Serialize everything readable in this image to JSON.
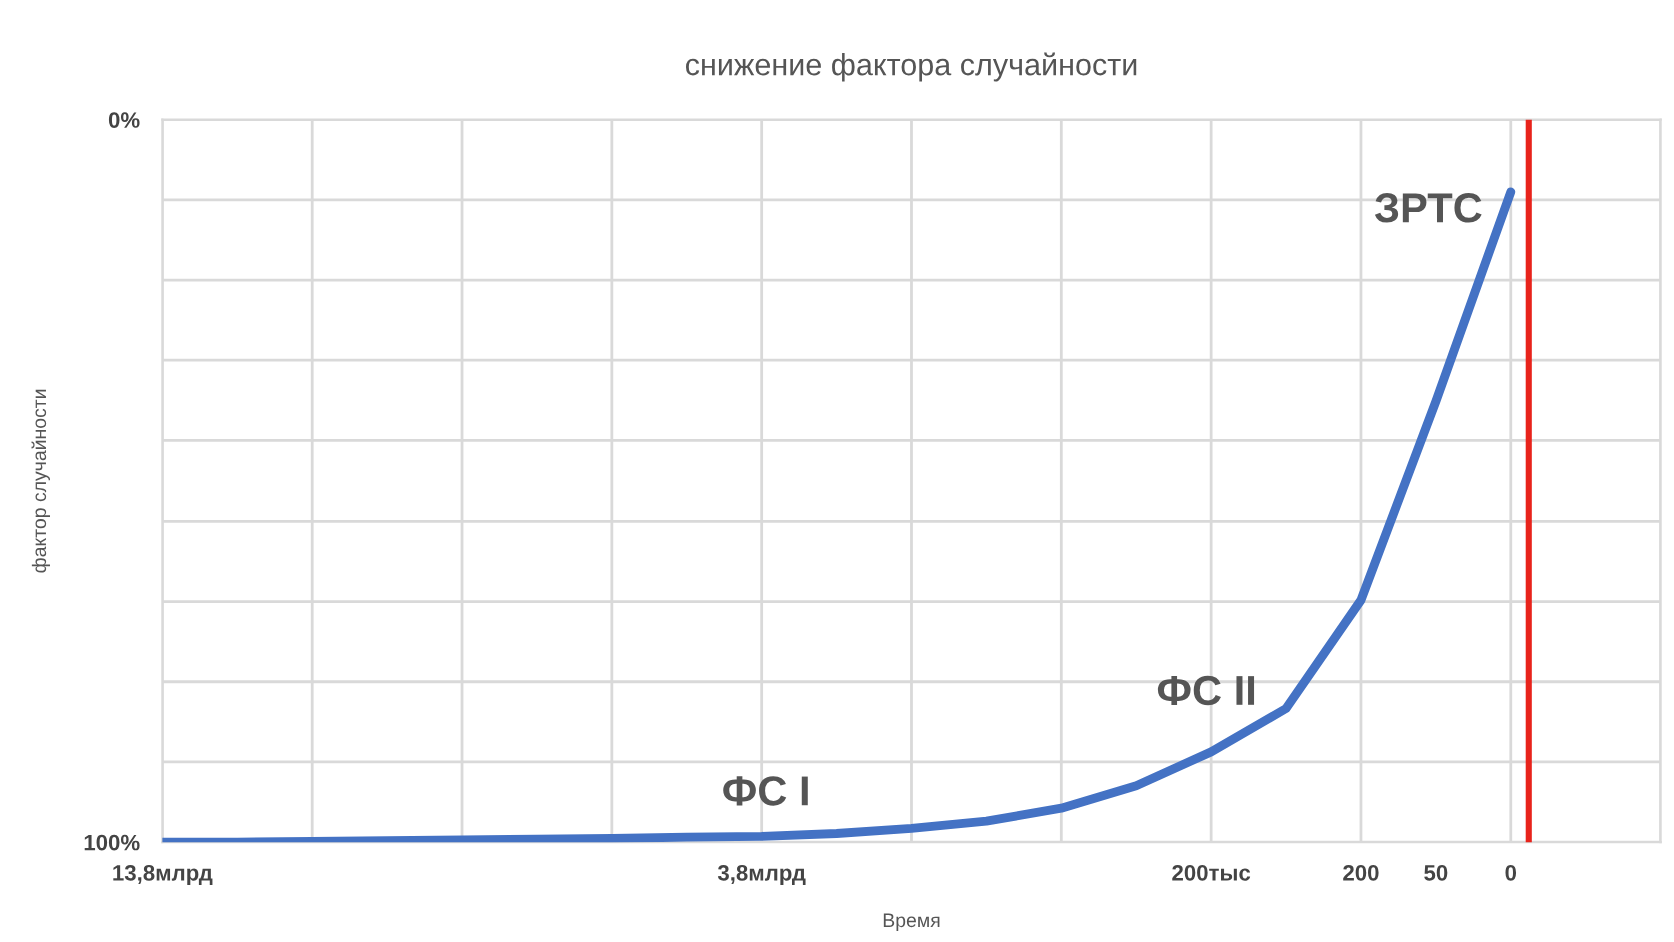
{
  "chart_data": {
    "type": "line",
    "title": "снижение фактора случайности",
    "xlabel": "Время",
    "ylabel": "фактор случайности",
    "categories": [
      "13,8млрд",
      null,
      null,
      null,
      null,
      null,
      null,
      null,
      "3,8млрд",
      null,
      null,
      null,
      null,
      null,
      "200тыс",
      null,
      "200",
      "50",
      "0",
      null,
      null
    ],
    "series": [
      {
        "color": "#4472c4",
        "values": [
          100,
          100,
          99.9,
          99.8,
          99.7,
          99.6,
          99.5,
          99.3,
          99.2,
          98.8,
          98.1,
          97.1,
          95.3,
          92.2,
          87.5,
          81.5,
          66.5,
          39,
          10,
          null,
          null
        ]
      }
    ],
    "ylim": [
      100,
      0
    ],
    "yticks": [
      {
        "value": 0,
        "label": "0%"
      },
      {
        "value": 11.1,
        "label": null
      },
      {
        "value": 22.2,
        "label": null
      },
      {
        "value": 33.3,
        "label": null
      },
      {
        "value": 44.4,
        "label": null
      },
      {
        "value": 55.6,
        "label": null
      },
      {
        "value": 66.7,
        "label": null
      },
      {
        "value": 77.8,
        "label": null
      },
      {
        "value": 88.9,
        "label": null
      },
      {
        "value": 100,
        "label": "100%"
      }
    ],
    "annotations": [
      "ФС I",
      "ФС II",
      "ЗРТС"
    ],
    "grid": true,
    "legend": false,
    "marker": "none",
    "line_style": "solid"
  }
}
